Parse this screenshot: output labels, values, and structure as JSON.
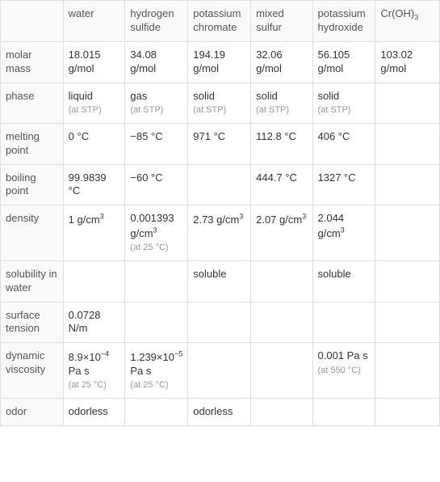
{
  "columns": [
    {
      "label": "water"
    },
    {
      "label": "hydrogen sulfide"
    },
    {
      "label": "potassium chromate"
    },
    {
      "label": "mixed sulfur"
    },
    {
      "label": "potassium hydroxide"
    },
    {
      "label_html": "Cr(OH)<sub class='sub'>3</sub>"
    }
  ],
  "rows": [
    {
      "label": "molar mass",
      "cells": [
        {
          "value": "18.015 g/mol"
        },
        {
          "value": "34.08 g/mol"
        },
        {
          "value": "194.19 g/mol"
        },
        {
          "value": "32.06 g/mol"
        },
        {
          "value": "56.105 g/mol"
        },
        {
          "value": "103.02 g/mol"
        }
      ]
    },
    {
      "label": "phase",
      "cells": [
        {
          "value": "liquid",
          "note": "(at STP)"
        },
        {
          "value": "gas",
          "note": "(at STP)"
        },
        {
          "value": "solid",
          "note": "(at STP)"
        },
        {
          "value": "solid",
          "note": "(at STP)"
        },
        {
          "value": "solid",
          "note": "(at STP)"
        },
        {
          "value": ""
        }
      ]
    },
    {
      "label": "melting point",
      "cells": [
        {
          "value": "0 °C"
        },
        {
          "value": "−85 °C"
        },
        {
          "value": "971 °C"
        },
        {
          "value": "112.8 °C"
        },
        {
          "value": "406 °C"
        },
        {
          "value": ""
        }
      ]
    },
    {
      "label": "boiling point",
      "cells": [
        {
          "value": "99.9839 °C"
        },
        {
          "value": "−60 °C"
        },
        {
          "value": ""
        },
        {
          "value": "444.7 °C"
        },
        {
          "value": "1327 °C"
        },
        {
          "value": ""
        }
      ]
    },
    {
      "label": "density",
      "cells": [
        {
          "value_html": "1 g/cm<sup class='sup'>3</sup>"
        },
        {
          "value_html": "0.001393 g/cm<sup class='sup'>3</sup>",
          "note": "(at 25 °C)"
        },
        {
          "value_html": "2.73 g/cm<sup class='sup'>3</sup>"
        },
        {
          "value_html": "2.07 g/cm<sup class='sup'>3</sup>"
        },
        {
          "value_html": "2.044 g/cm<sup class='sup'>3</sup>"
        },
        {
          "value": ""
        }
      ]
    },
    {
      "label": "solubility in water",
      "cells": [
        {
          "value": ""
        },
        {
          "value": ""
        },
        {
          "value": "soluble"
        },
        {
          "value": ""
        },
        {
          "value": "soluble"
        },
        {
          "value": ""
        }
      ]
    },
    {
      "label": "surface tension",
      "cells": [
        {
          "value": "0.0728 N/m"
        },
        {
          "value": ""
        },
        {
          "value": ""
        },
        {
          "value": ""
        },
        {
          "value": ""
        },
        {
          "value": ""
        }
      ]
    },
    {
      "label": "dynamic viscosity",
      "cells": [
        {
          "value_html": "8.9×10<sup class='sup'>−4</sup> Pa s",
          "note": "(at 25 °C)"
        },
        {
          "value_html": "1.239×10<sup class='sup'>−5</sup> Pa s",
          "note": "(at 25 °C)"
        },
        {
          "value": ""
        },
        {
          "value": ""
        },
        {
          "value": "0.001 Pa s",
          "note": "(at 550 °C)"
        },
        {
          "value": ""
        }
      ]
    },
    {
      "label": "odor",
      "cells": [
        {
          "value": "odorless"
        },
        {
          "value": ""
        },
        {
          "value": "odorless"
        },
        {
          "value": ""
        },
        {
          "value": ""
        },
        {
          "value": ""
        }
      ]
    }
  ]
}
